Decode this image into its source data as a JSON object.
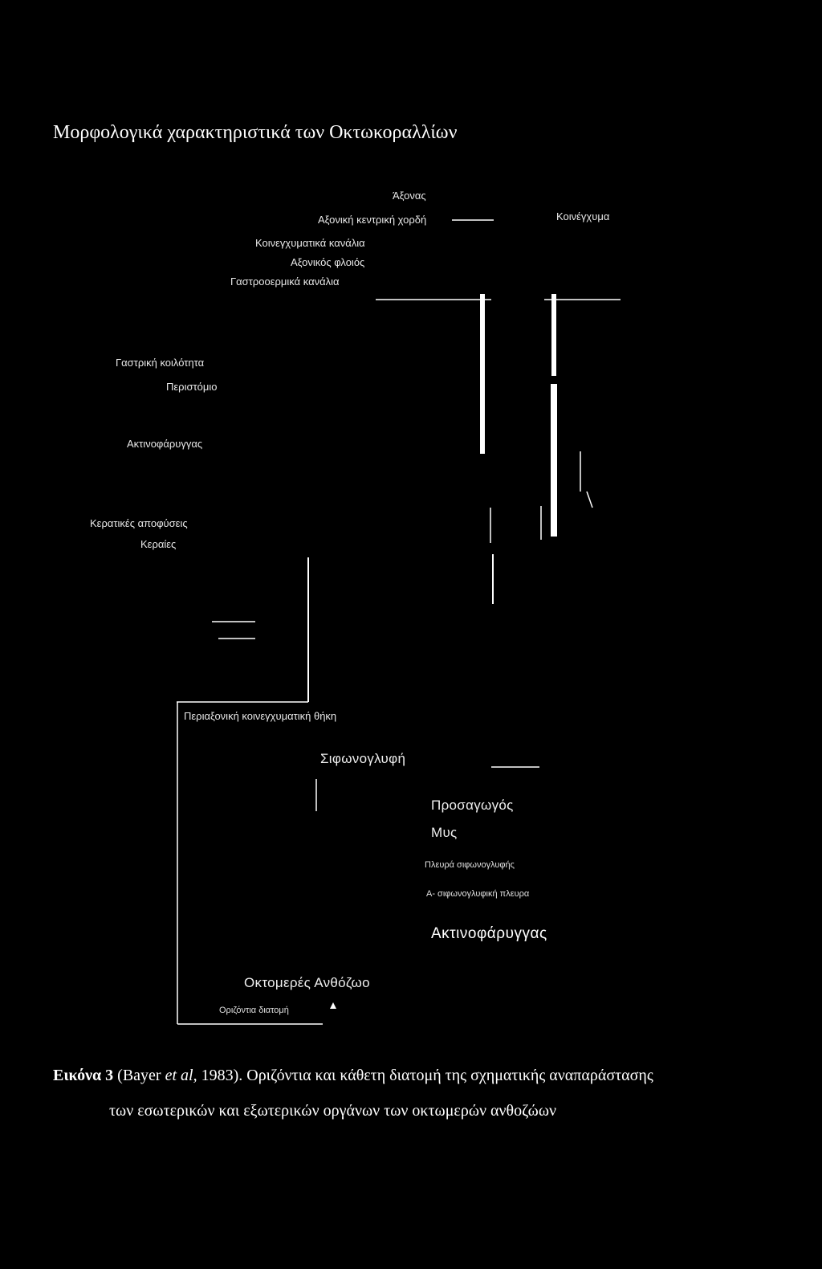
{
  "title": "Μορφολογικά χαρακτηριστικά των Οκτωκοραλλίων",
  "labels": {
    "axonas": "Άξονας",
    "axoniki_kentriki_chordi": "Αξονική κεντρική χορδή",
    "koinenchyma": "Κοινέγχυμα",
    "koinenchymatika_kanalia": "Κοινεγχυματικά κανάλια",
    "axonikos_floios": "Αξονικός φλοιός",
    "gastrooermika_kanalia": "Γαστροοερμικά κανάλια",
    "gastriki_koilotita": "Γαστρική κοιλότητα",
    "peristomio": "Περιστόμιο",
    "aktinofaryngas_top": "Ακτινοφάρυγγας",
    "keratikes_apofyseis": "Κερατικές αποφύσεις",
    "keraties": "Κεραίες",
    "periaxoniki_thiki": "Περιαξονική κοινεγχυματική θήκη",
    "sifonoglyfi": "Σιφωνογλυφή",
    "prosagogos": "Προσαγωγός",
    "mys": "Μυς",
    "plevra_sifonoglyfis": "Πλευρά σιφωνογλυφής",
    "a_sifonoglyfiki_plevra": "Α- σιφωνογλυφική πλευρα",
    "aktinofaryngas_bottom": "Ακτινοφάρυγγας",
    "oktomeres_anthozoo": "Οκτομερές Ανθόζωο",
    "orizontia_diatomi": "Οριζόντια διατομή"
  },
  "caption": {
    "label": "Εικόνα 3",
    "text_before_italic": " (Bayer ",
    "italic": "et al,",
    "text_after_italic": " 1983). Οριζόντια και κάθετη διατομή της σχηματικής αναπαράστασης",
    "line2": "των εσωτερικών και εξωτερικών οργάνων των οκτωμερών ανθοζώων"
  },
  "colors": {
    "background": "#000000",
    "foreground": "#ffffff"
  }
}
